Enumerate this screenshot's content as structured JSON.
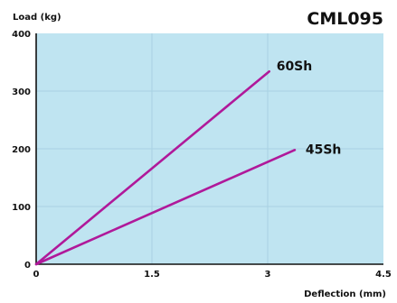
{
  "chart_data": {
    "type": "line",
    "title": "CML095",
    "xlabel": "Deflection (mm)",
    "ylabel": "Load (kg)",
    "xlim": [
      0,
      4.5
    ],
    "ylim": [
      0,
      400
    ],
    "x_ticks": [
      "0",
      "1.5",
      "3",
      "4.5"
    ],
    "y_ticks": [
      "0",
      "100",
      "200",
      "300",
      "400"
    ],
    "grid": true,
    "legend": "none",
    "colors": {
      "plot_background": "#bfe4f1",
      "grid": "#a9d1e2",
      "series": "#b0199a"
    },
    "series": [
      {
        "name": "60Sh",
        "points": [
          [
            0,
            0
          ],
          [
            3.02,
            334
          ]
        ]
      },
      {
        "name": "45Sh",
        "points": [
          [
            0,
            0
          ],
          [
            3.35,
            198
          ]
        ]
      }
    ]
  }
}
